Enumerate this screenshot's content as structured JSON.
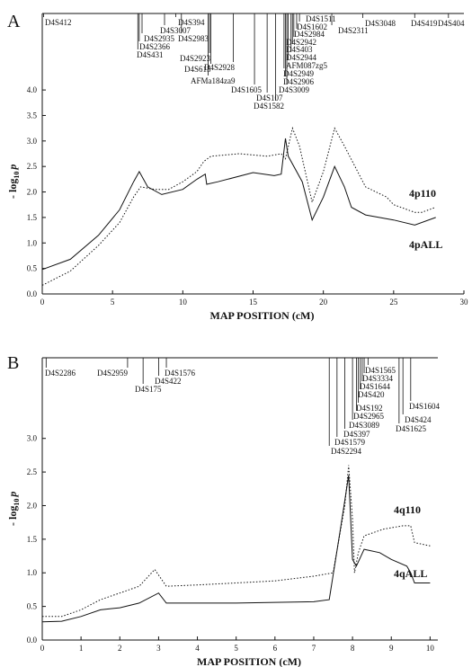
{
  "chart_data": [
    {
      "type": "line",
      "panel": "A",
      "xlabel": "MAP POSITION (cM)",
      "ylabel": "- log",
      "ylabel_sub": "10",
      "ylabel_var": "p",
      "xlim": [
        0,
        30
      ],
      "ylim": [
        0,
        5.5
      ],
      "xticks": [
        0,
        5,
        10,
        15,
        20,
        25,
        30
      ],
      "yticks": [
        {
          "value": 0,
          "label": "0.0"
        },
        0.5,
        {
          "value": 1,
          "label": "1.0"
        },
        1.5,
        {
          "value": 2,
          "label": "2.0"
        },
        2.5,
        {
          "value": 3,
          "label": "3.0"
        },
        3.5,
        {
          "value": 4,
          "label": "4.0"
        }
      ],
      "series": [
        {
          "name": "4p110",
          "color": "#111",
          "style": "dotted",
          "x": [
            0,
            2,
            4,
            5.5,
            6.5,
            7,
            8,
            9,
            10,
            11,
            11.5,
            12,
            14,
            16,
            17,
            17.3,
            17.8,
            18.3,
            19.2,
            20,
            20.8,
            21.5,
            23,
            24.5,
            25,
            26.5,
            27,
            28
          ],
          "values": [
            0.17,
            0.45,
            0.95,
            1.4,
            1.9,
            2.1,
            2.05,
            2.05,
            2.2,
            2.4,
            2.6,
            2.7,
            2.75,
            2.7,
            2.75,
            2.65,
            3.25,
            2.9,
            1.8,
            2.4,
            3.25,
            2.9,
            2.1,
            1.9,
            1.75,
            1.6,
            1.6,
            1.7
          ]
        },
        {
          "name": "4pALL",
          "color": "#111",
          "style": "solid",
          "x": [
            0,
            2,
            4,
            5.5,
            6.5,
            6.9,
            7.5,
            8.5,
            10,
            11,
            11.6,
            11.7,
            12.5,
            15,
            16.5,
            17,
            17.3,
            17.5,
            18.5,
            19.2,
            20,
            20.8,
            21.5,
            22,
            23,
            25,
            26.5,
            28
          ],
          "values": [
            0.48,
            0.68,
            1.15,
            1.65,
            2.2,
            2.4,
            2.1,
            1.95,
            2.05,
            2.25,
            2.35,
            2.15,
            2.2,
            2.38,
            2.32,
            2.35,
            3.05,
            2.7,
            2.2,
            1.45,
            1.9,
            2.5,
            2.1,
            1.7,
            1.55,
            1.45,
            1.35,
            1.5
          ]
        }
      ],
      "markers": [
        {
          "label": "D4S412",
          "x": 0.1
        },
        {
          "label": "D4S394",
          "x": 9.5
        },
        {
          "label": "D4S3007",
          "x": 8.7
        },
        {
          "label": "D4S2935",
          "x": 7.1
        },
        {
          "label": "D4S2983",
          "x": 9.9
        },
        {
          "label": "D4S2366",
          "x": 6.9
        },
        {
          "label": "D4S431",
          "x": 6.8
        },
        {
          "label": "D4S2923",
          "x": 11.9
        },
        {
          "label": "D4S2928",
          "x": 13.6
        },
        {
          "label": "D4S615",
          "x": 12.0
        },
        {
          "label": "AFMa184za9",
          "x": 11.8
        },
        {
          "label": "D4S1605",
          "x": 15.1
        },
        {
          "label": "D4S107",
          "x": 16.0
        },
        {
          "label": "D4S1582",
          "x": 16.6
        },
        {
          "label": "D4S3009",
          "x": 17.4
        },
        {
          "label": "D4S2906",
          "x": 17.3
        },
        {
          "label": "D4S2949",
          "x": 17.2
        },
        {
          "label": "AFM087zg5",
          "x": 17.5
        },
        {
          "label": "D4S2944",
          "x": 17.7
        },
        {
          "label": "D4S403",
          "x": 17.8
        },
        {
          "label": "D4S2942",
          "x": 17.9
        },
        {
          "label": "D4S2984",
          "x": 18.1
        },
        {
          "label": "D4S1602",
          "x": 18.3
        },
        {
          "label": "D4S1511",
          "x": 18.6
        },
        {
          "label": "D4S2311",
          "x": 20.6
        },
        {
          "label": "D4S3048",
          "x": 22.8
        },
        {
          "label": "D4S419",
          "x": 26.5
        },
        {
          "label": "D4S404",
          "x": 28.9
        }
      ]
    },
    {
      "type": "line",
      "panel": "B",
      "xlabel": "MAP POSITION (cM)",
      "ylabel": "- log",
      "ylabel_sub": "10",
      "ylabel_var": "p",
      "xlim": [
        0,
        10.2
      ],
      "ylim": [
        0,
        4.2
      ],
      "xticks": [
        0,
        1,
        2,
        3,
        4,
        5,
        6,
        7,
        8,
        9,
        10
      ],
      "yticks": [
        {
          "value": 0,
          "label": "0.0"
        },
        0.5,
        {
          "value": 1,
          "label": "1.0"
        },
        1.5,
        {
          "value": 2,
          "label": "2.0"
        },
        2.5,
        {
          "value": 3,
          "label": "3.0"
        }
      ],
      "series": [
        {
          "name": "4q110",
          "color": "#111",
          "style": "dotted",
          "x": [
            0,
            0.5,
            1,
            1.5,
            2,
            2.5,
            2.9,
            3.2,
            4,
            5,
            6,
            7,
            7.5,
            7.8,
            7.9,
            8.0,
            8.05,
            8.15,
            8.3,
            8.8,
            9.3,
            9.5,
            9.6,
            10
          ],
          "values": [
            0.35,
            0.35,
            0.45,
            0.6,
            0.7,
            0.8,
            1.05,
            0.8,
            0.82,
            0.85,
            0.88,
            0.95,
            1.0,
            2.0,
            2.6,
            1.8,
            1.0,
            1.3,
            1.55,
            1.65,
            1.7,
            1.7,
            1.45,
            1.4
          ]
        },
        {
          "name": "4qALL",
          "color": "#111",
          "style": "solid",
          "x": [
            0,
            0.5,
            1,
            1.5,
            2,
            2.5,
            3,
            3.2,
            5,
            7,
            7.4,
            7.7,
            7.9,
            8.0,
            8.1,
            8.3,
            8.7,
            9,
            9.4,
            9.5,
            9.6,
            10
          ],
          "values": [
            0.27,
            0.28,
            0.35,
            0.45,
            0.48,
            0.55,
            0.7,
            0.55,
            0.55,
            0.57,
            0.6,
            1.7,
            2.45,
            1.2,
            1.1,
            1.35,
            1.3,
            1.2,
            1.1,
            1.0,
            0.85,
            0.85
          ]
        }
      ],
      "markers": [
        {
          "label": "D4S2286",
          "x": 0.1
        },
        {
          "label": "D4S2959",
          "x": 2.2
        },
        {
          "label": "D4S175",
          "x": 2.6
        },
        {
          "label": "D4S422",
          "x": 3.0
        },
        {
          "label": "D4S1576",
          "x": 3.2
        },
        {
          "label": "D4S2294",
          "x": 7.4
        },
        {
          "label": "D4S1579",
          "x": 7.6
        },
        {
          "label": "D4S397",
          "x": 7.8
        },
        {
          "label": "D4S3089",
          "x": 8.0
        },
        {
          "label": "D4S2965",
          "x": 8.1
        },
        {
          "label": "D4S192",
          "x": 8.15
        },
        {
          "label": "D4S420",
          "x": 8.2
        },
        {
          "label": "D4S1644",
          "x": 8.25
        },
        {
          "label": "D4S3334",
          "x": 8.3
        },
        {
          "label": "D4S1565",
          "x": 8.4
        },
        {
          "label": "D4S1625",
          "x": 9.2
        },
        {
          "label": "D4S424",
          "x": 9.3
        },
        {
          "label": "D4S1604",
          "x": 9.5
        }
      ]
    }
  ]
}
